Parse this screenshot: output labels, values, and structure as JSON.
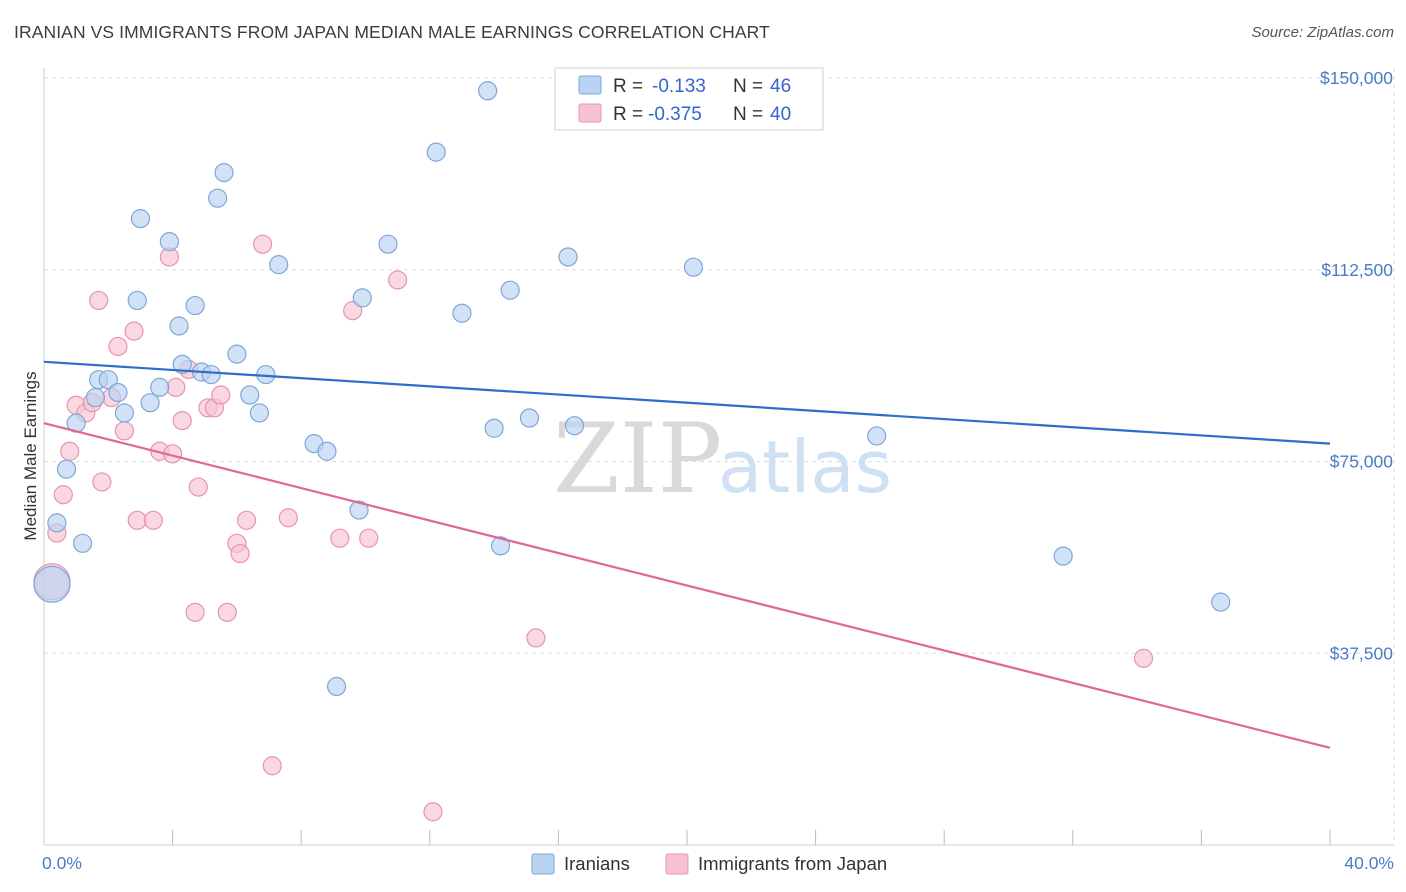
{
  "header": {
    "title": "IRANIAN VS IMMIGRANTS FROM JAPAN MEDIAN MALE EARNINGS CORRELATION CHART",
    "source": "Source: ZipAtlas.com"
  },
  "watermark": {
    "zip": "ZIP",
    "atlas": "atlas"
  },
  "colors": {
    "iranians_fill": "#b9d3f2",
    "iranians_stroke": "#7fa6d9",
    "iranians_line": "#2f6dcb",
    "japan_fill": "#f7c3d2",
    "japan_stroke": "#e794ad",
    "japan_line": "#e06893",
    "grid": "#dddddd",
    "tick_label": "#4a7cc9"
  },
  "legend": {
    "rows": [
      {
        "r_label": "R = ",
        "r_value": "-0.133",
        "n_label": "N = ",
        "n_value": "46"
      },
      {
        "r_label": "R = ",
        "r_value": "-0.375",
        "n_label": "N = ",
        "n_value": "40"
      }
    ]
  },
  "chart_data": {
    "type": "scatter",
    "title": "IRANIAN VS IMMIGRANTS FROM JAPAN MEDIAN MALE EARNINGS CORRELATION CHART",
    "xlabel": "",
    "ylabel": "Median Male Earnings",
    "xlim": [
      0,
      40
    ],
    "ylim": [
      0,
      150000
    ],
    "x_tick_labels": [
      "0.0%",
      "40.0%"
    ],
    "y_ticks": [
      37500,
      75000,
      112500,
      150000
    ],
    "y_tick_labels": [
      "$37,500",
      "$75,000",
      "$112,500",
      "$150,000"
    ],
    "grid": true,
    "legend_position": "top-center",
    "series": [
      {
        "name": "Iranians",
        "trend": {
          "x": [
            0,
            40
          ],
          "y": [
            94500,
            78500
          ]
        },
        "points": [
          [
            0.0,
            51000
          ],
          [
            0.4,
            63000
          ],
          [
            0.7,
            73500
          ],
          [
            1.0,
            82500
          ],
          [
            1.2,
            59000
          ],
          [
            1.6,
            87500
          ],
          [
            1.7,
            91000
          ],
          [
            2.0,
            91000
          ],
          [
            2.3,
            88500
          ],
          [
            2.5,
            84500
          ],
          [
            2.9,
            106500
          ],
          [
            3.0,
            122500
          ],
          [
            3.3,
            86500
          ],
          [
            3.6,
            89500
          ],
          [
            3.9,
            118000
          ],
          [
            4.2,
            101500
          ],
          [
            4.3,
            94000
          ],
          [
            4.7,
            105500
          ],
          [
            4.9,
            92500
          ],
          [
            5.2,
            92000
          ],
          [
            5.4,
            126500
          ],
          [
            5.6,
            131500
          ],
          [
            6.0,
            96000
          ],
          [
            6.4,
            88000
          ],
          [
            6.7,
            84500
          ],
          [
            6.9,
            92000
          ],
          [
            7.3,
            113500
          ],
          [
            8.4,
            78500
          ],
          [
            8.8,
            77000
          ],
          [
            9.1,
            31000
          ],
          [
            9.8,
            65500
          ],
          [
            9.9,
            107000
          ],
          [
            10.7,
            117500
          ],
          [
            12.2,
            135500
          ],
          [
            13.0,
            104000
          ],
          [
            13.8,
            147500
          ],
          [
            14.0,
            81500
          ],
          [
            14.2,
            58500
          ],
          [
            14.5,
            108500
          ],
          [
            15.1,
            83500
          ],
          [
            16.3,
            115000
          ],
          [
            16.5,
            82000
          ],
          [
            20.2,
            113000
          ],
          [
            25.9,
            80000
          ],
          [
            31.7,
            56500
          ],
          [
            36.6,
            47500
          ]
        ]
      },
      {
        "name": "Immigrants from Japan",
        "trend": {
          "x": [
            0,
            40
          ],
          "y": [
            82500,
            19000
          ]
        },
        "points": [
          [
            0.0,
            51500
          ],
          [
            0.4,
            61000
          ],
          [
            0.6,
            68500
          ],
          [
            0.8,
            77000
          ],
          [
            1.0,
            86000
          ],
          [
            1.3,
            84500
          ],
          [
            1.5,
            86500
          ],
          [
            1.7,
            106500
          ],
          [
            1.8,
            71000
          ],
          [
            2.1,
            87500
          ],
          [
            2.3,
            97500
          ],
          [
            2.5,
            81000
          ],
          [
            2.8,
            100500
          ],
          [
            2.9,
            63500
          ],
          [
            3.4,
            63500
          ],
          [
            3.6,
            77000
          ],
          [
            3.9,
            115000
          ],
          [
            4.0,
            76500
          ],
          [
            4.1,
            89500
          ],
          [
            4.3,
            83000
          ],
          [
            4.5,
            93000
          ],
          [
            4.7,
            45500
          ],
          [
            4.8,
            70000
          ],
          [
            5.1,
            85500
          ],
          [
            5.3,
            85500
          ],
          [
            5.5,
            88000
          ],
          [
            5.7,
            45500
          ],
          [
            6.0,
            59000
          ],
          [
            6.1,
            57000
          ],
          [
            6.3,
            63500
          ],
          [
            6.8,
            117500
          ],
          [
            7.1,
            15500
          ],
          [
            7.6,
            64000
          ],
          [
            9.2,
            60000
          ],
          [
            9.6,
            104500
          ],
          [
            10.1,
            60000
          ],
          [
            11.0,
            110500
          ],
          [
            12.1,
            6500
          ],
          [
            15.3,
            40500
          ],
          [
            34.2,
            36500
          ]
        ]
      }
    ]
  },
  "bottom_legend": {
    "items": [
      "Iranians",
      "Immigrants from Japan"
    ]
  }
}
